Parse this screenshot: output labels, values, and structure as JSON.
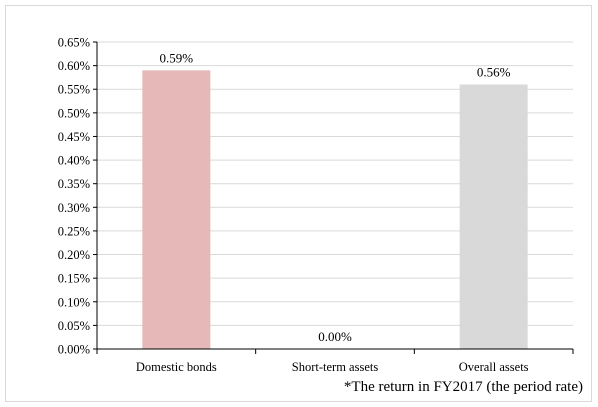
{
  "chart_data": {
    "type": "bar",
    "categories": [
      "Domestic bonds",
      "Short-term assets",
      "Overall assets"
    ],
    "values": [
      0.59,
      0.0,
      0.56
    ],
    "data_labels": [
      "0.59%",
      "0.00%",
      "0.56%"
    ],
    "bar_colors": [
      "#e6b8b7",
      "#dce6f1",
      "#d9d9d9"
    ],
    "ylim": [
      0,
      0.65
    ],
    "ytick_step": 0.05,
    "ytick_labels": [
      "0.00%",
      "0.05%",
      "0.10%",
      "0.15%",
      "0.20%",
      "0.25%",
      "0.30%",
      "0.35%",
      "0.40%",
      "0.45%",
      "0.50%",
      "0.55%",
      "0.60%",
      "0.65%"
    ],
    "grid": true,
    "gridline_color": "#d9d9d9",
    "axis_color": "#000000",
    "legend": "none",
    "title": "",
    "xlabel": "",
    "ylabel": ""
  },
  "footnote": "*The return in FY2017 (the period rate)"
}
